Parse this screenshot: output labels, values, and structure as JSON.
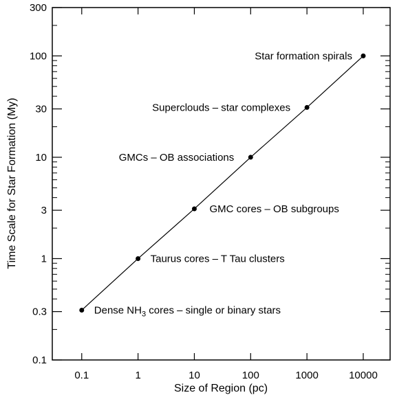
{
  "chart_data": {
    "type": "line",
    "xscale": "log",
    "yscale": "log",
    "xlabel": "Size of Region (pc)",
    "ylabel": "Time Scale for Star Formation (My)",
    "xlim": [
      0.03,
      30000
    ],
    "ylim": [
      0.1,
      300
    ],
    "xticks": [
      0.1,
      1,
      10,
      100,
      1000,
      10000
    ],
    "xtick_labels": [
      "0.1",
      "1",
      "10",
      "100",
      "1000",
      "10000"
    ],
    "yticks": [
      0.1,
      0.3,
      1,
      3,
      10,
      30,
      100,
      300
    ],
    "ytick_labels": [
      "0.1",
      "0.3",
      "1",
      "3",
      "10",
      "30",
      "100",
      "300"
    ],
    "grid": false,
    "series": [
      {
        "x": [
          0.1,
          1,
          10,
          100,
          1000,
          10000
        ],
        "y": [
          0.31,
          1,
          3.1,
          10,
          31,
          100
        ],
        "labels": [
          "Dense NH3 cores – single or binary stars",
          "Taurus cores – T Tau clusters",
          "GMC cores – OB subgroups",
          "GMCs – OB associations",
          "Superclouds – star complexes",
          "Star formation spirals"
        ]
      }
    ]
  },
  "annotations": {
    "nh3_prefix": "Dense NH",
    "nh3_subscript": "3",
    "nh3_suffix": " cores – single or binary stars"
  }
}
